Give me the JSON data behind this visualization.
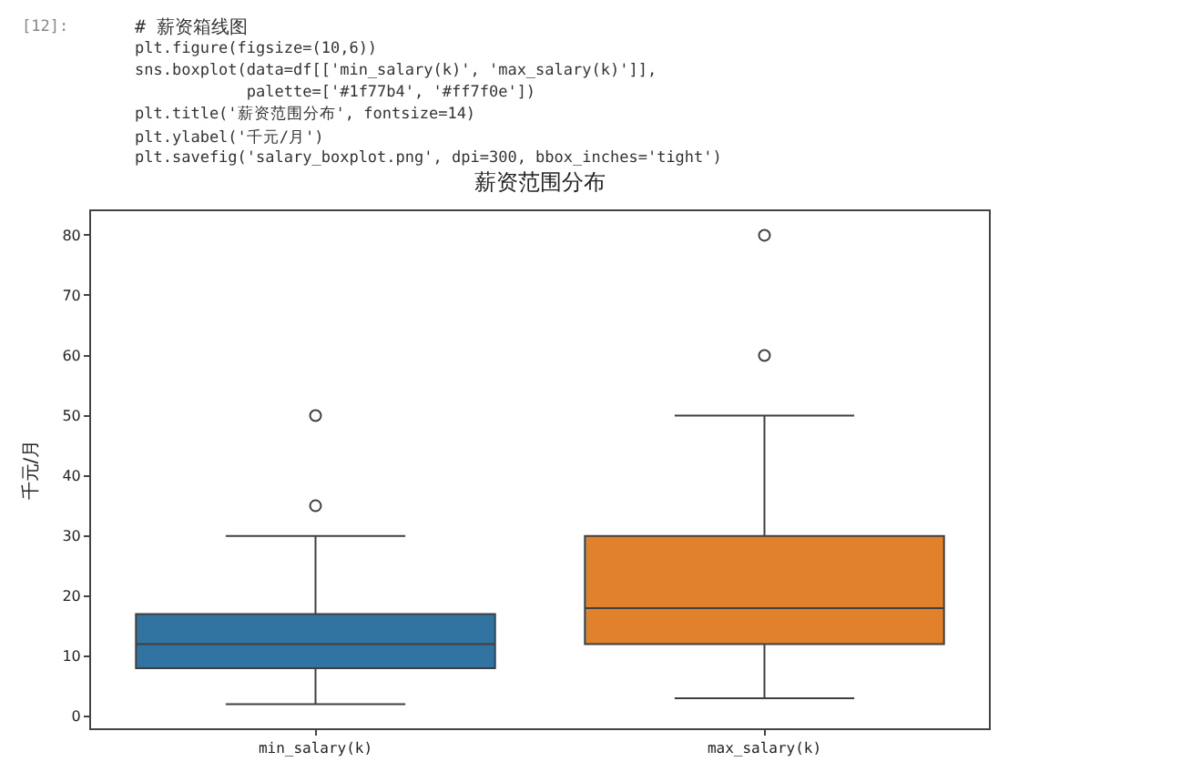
{
  "chart_data": {
    "type": "box",
    "title": "薪资范围分布",
    "ylabel": "千元/月",
    "categories": [
      "min_salary(k)",
      "max_salary(k)"
    ],
    "colors": [
      "#3274a1",
      "#e1812c"
    ],
    "boxes": [
      {
        "low": 2,
        "q1": 8,
        "median": 12,
        "q3": 17,
        "high": 30,
        "outliers": [
          35,
          50
        ]
      },
      {
        "low": 3,
        "q1": 12,
        "median": 18,
        "q3": 30,
        "high": 50,
        "outliers": [
          60,
          80
        ]
      }
    ],
    "ylim": [
      -2,
      84
    ],
    "yticks": [
      0,
      10,
      20,
      30,
      40,
      50,
      60,
      70,
      80
    ],
    "grid": false,
    "legend": false,
    "marker": "circle",
    "annotations": [
      "[12]:",
      "# 薪资箱线图",
      "plt.figure(figsize=(10,6))",
      "sns.boxplot(data=df[['min_salary(k)', 'max_salary(k)']],",
      "            palette=['#1f77b4', '#ff7f0e'])",
      "plt.title('薪资范围分布', fontsize=14)",
      "plt.ylabel('千元/月')",
      "plt.savefig('salary_boxplot.png', dpi=300, bbox_inches='tight')"
    ]
  }
}
